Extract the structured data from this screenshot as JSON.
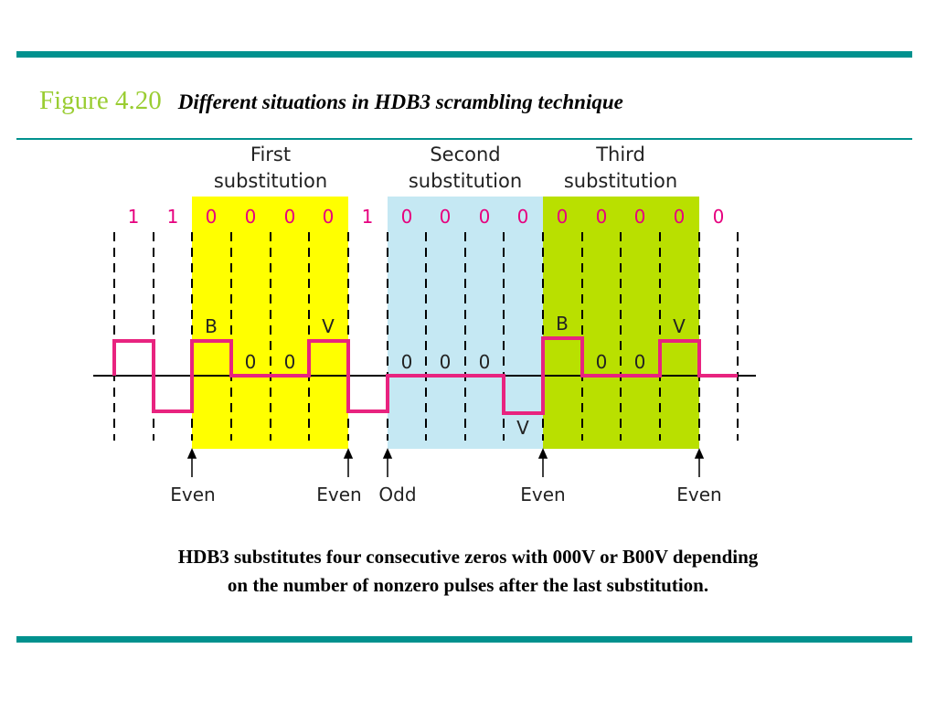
{
  "figure": {
    "number": "Figure 4.20",
    "title": "Different situations in HDB3 scrambling technique"
  },
  "diagram": {
    "regions": [
      {
        "label_line1": "First",
        "label_line2": "substitution",
        "color": "#ffff00"
      },
      {
        "label_line1": "Second",
        "label_line2": "substitution",
        "color": "#c5e8f3"
      },
      {
        "label_line1": "Third",
        "label_line2": "substitution",
        "color": "#b9e000"
      }
    ],
    "bits": [
      "1",
      "1",
      "0",
      "0",
      "0",
      "0",
      "1",
      "0",
      "0",
      "0",
      "0",
      "0",
      "0",
      "0",
      "0",
      "0"
    ],
    "bit_color": "#e6007e",
    "signal_color": "#e8237f",
    "pulse_labels": [
      {
        "text": "B"
      },
      {
        "text": "0"
      },
      {
        "text": "0"
      },
      {
        "text": "V"
      },
      {
        "text": "0"
      },
      {
        "text": "0"
      },
      {
        "text": "0"
      },
      {
        "text": "V"
      },
      {
        "text": "B"
      },
      {
        "text": "0"
      },
      {
        "text": "0"
      },
      {
        "text": "V"
      }
    ],
    "parity_markers": [
      {
        "text": "Even"
      },
      {
        "text": "Even"
      },
      {
        "text": "Odd"
      },
      {
        "text": "Even"
      },
      {
        "text": "Even"
      }
    ]
  },
  "caption": {
    "line1": "HDB3 substitutes four consecutive zeros with 000V or B00V depending",
    "line2": "on the number of nonzero pulses after the last substitution."
  }
}
